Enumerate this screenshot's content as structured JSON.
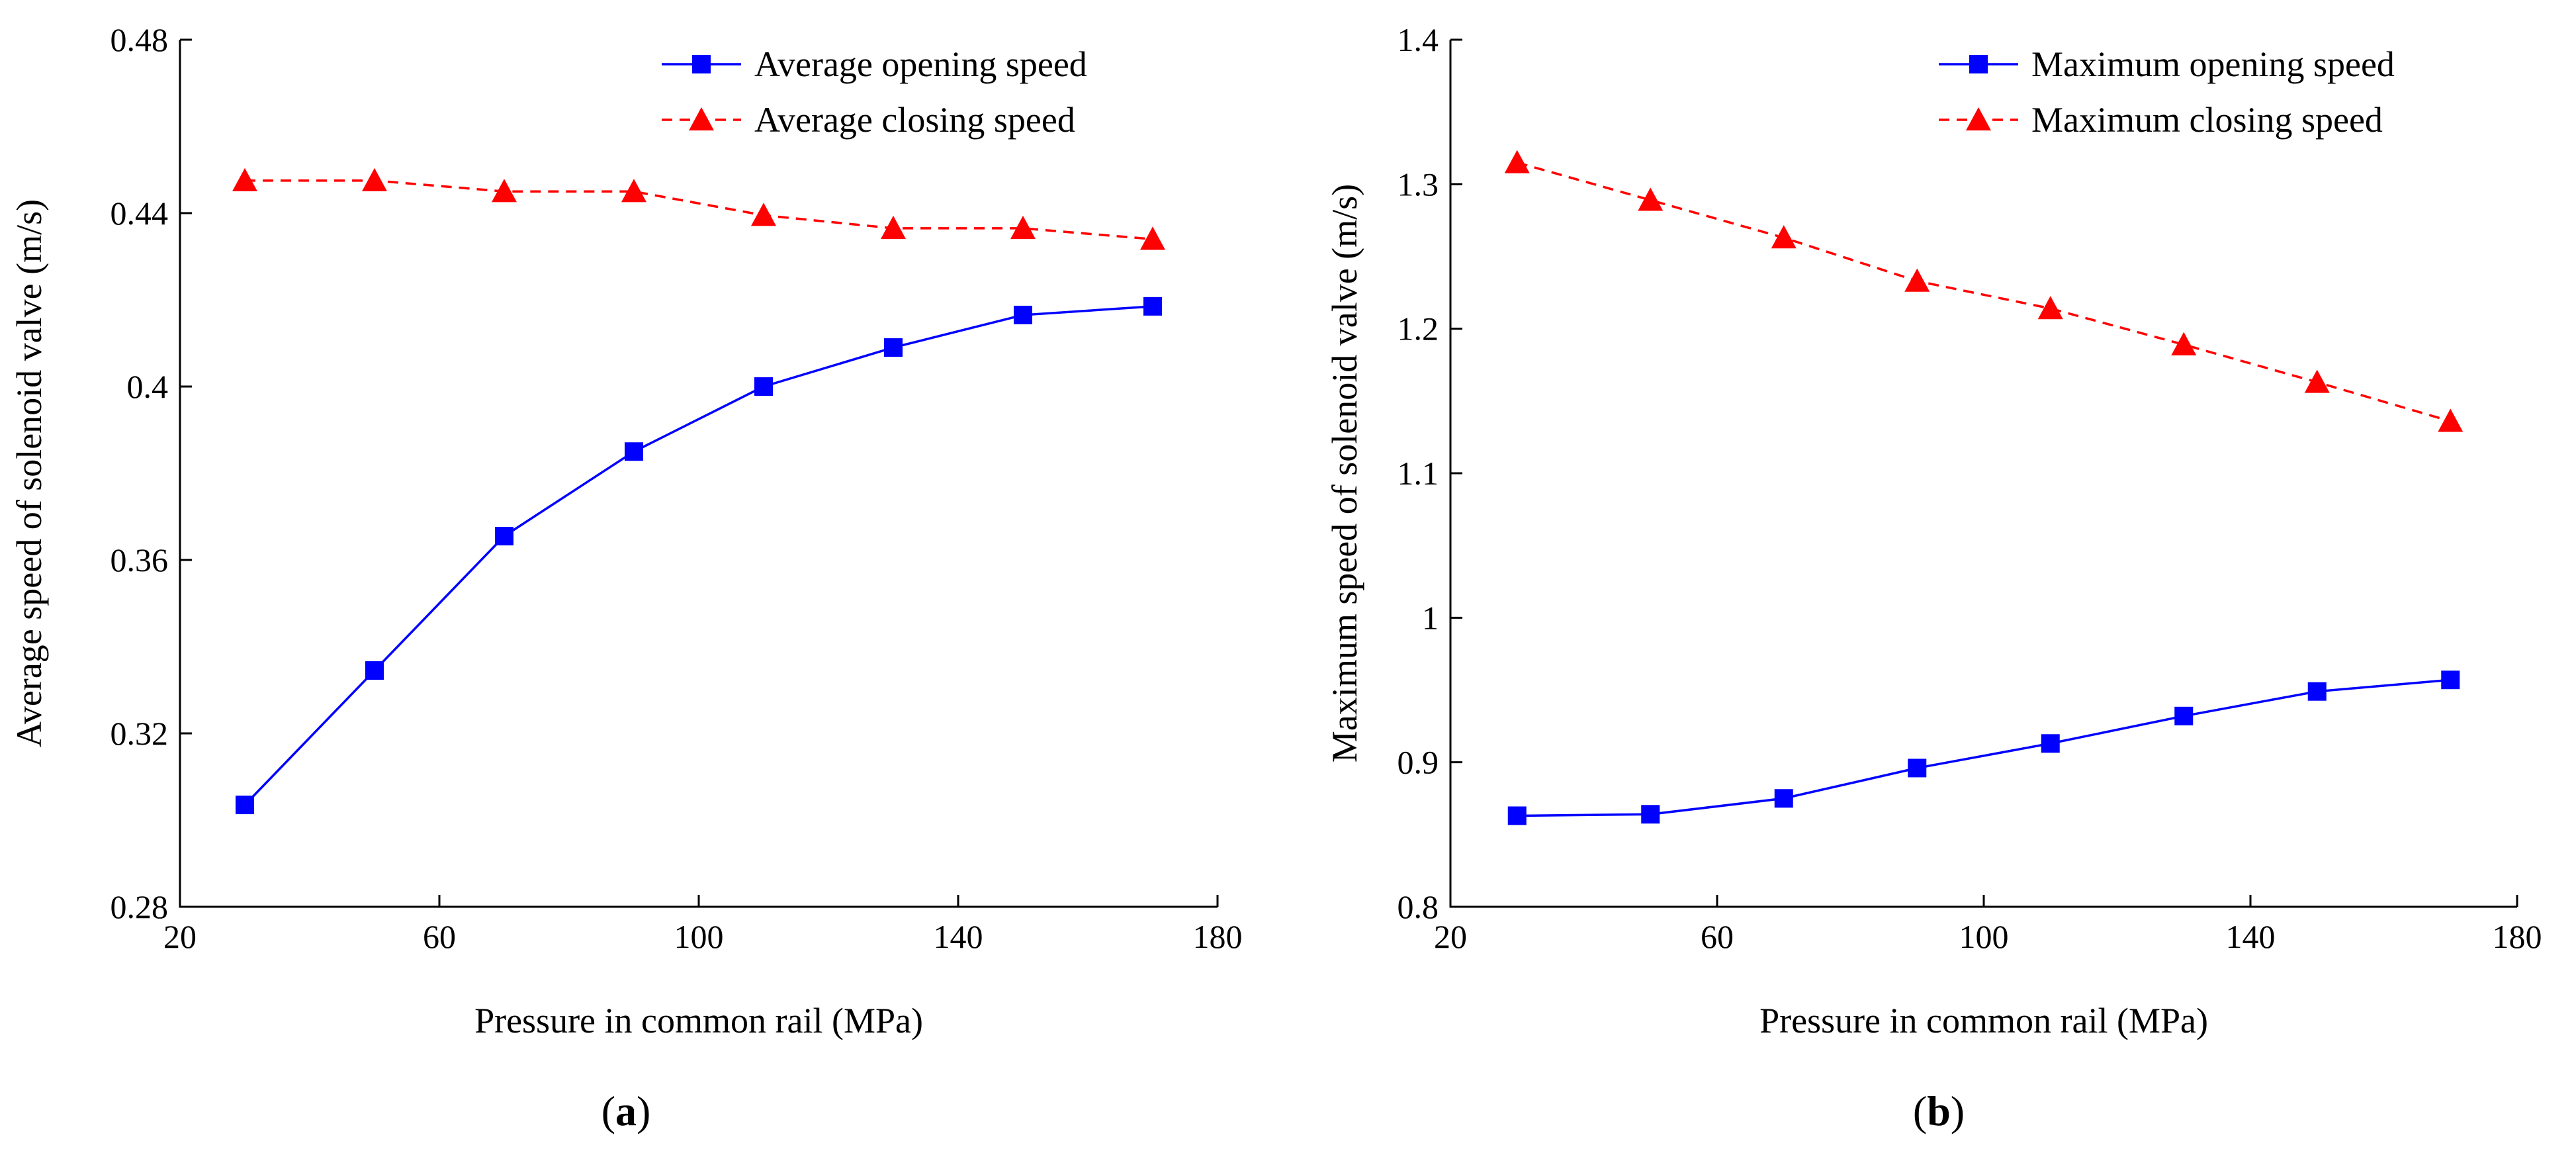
{
  "chart_data": [
    {
      "type": "line",
      "panel_label": "a",
      "xlabel": "Pressure in common rail (MPa)",
      "ylabel": "Average speed of solenoid valve (m/s)",
      "xlim": [
        20,
        180
      ],
      "ylim": [
        0.28,
        0.48
      ],
      "xticks": [
        20,
        60,
        100,
        140,
        180
      ],
      "xtick_labels": [
        "20",
        "60",
        "100",
        "140",
        "180"
      ],
      "yticks": [
        0.28,
        0.32,
        0.36,
        0.4,
        0.44,
        0.48
      ],
      "ytick_labels": [
        "0.28",
        "0.32",
        "0.36",
        "0.4",
        "0.44",
        "0.48"
      ],
      "grid": false,
      "legend_position": "top-right",
      "x": [
        30,
        50,
        70,
        90,
        110,
        130,
        150,
        170
      ],
      "series": [
        {
          "name": "Average opening speed",
          "color": "#0000ff",
          "marker": "square",
          "line_style": "solid",
          "values": [
            0.3035,
            0.3345,
            0.3655,
            0.385,
            0.4,
            0.409,
            0.4165,
            0.4185
          ]
        },
        {
          "name": "Average closing speed",
          "color": "#ff0000",
          "marker": "triangle",
          "line_style": "dashed",
          "values": [
            0.4475,
            0.4475,
            0.445,
            0.445,
            0.4395,
            0.4365,
            0.4365,
            0.434
          ]
        }
      ]
    },
    {
      "type": "line",
      "panel_label": "b",
      "xlabel": "Pressure in common rail (MPa)",
      "ylabel": "Maximum speed of solenoid valve (m/s)",
      "xlim": [
        20,
        180
      ],
      "ylim": [
        0.8,
        1.4
      ],
      "xticks": [
        20,
        60,
        100,
        140,
        180
      ],
      "xtick_labels": [
        "20",
        "60",
        "100",
        "140",
        "180"
      ],
      "yticks": [
        0.8,
        0.9,
        1.0,
        1.1,
        1.2,
        1.3,
        1.4
      ],
      "ytick_labels": [
        "0.8",
        "0.9",
        "1",
        "1.1",
        "1.2",
        "1.3",
        "1.4"
      ],
      "grid": false,
      "legend_position": "top-right",
      "x": [
        30,
        50,
        70,
        90,
        110,
        130,
        150,
        170
      ],
      "series": [
        {
          "name": "Maximum opening speed",
          "color": "#0000ff",
          "marker": "square",
          "line_style": "solid",
          "values": [
            0.863,
            0.864,
            0.875,
            0.896,
            0.913,
            0.932,
            0.949,
            0.957
          ]
        },
        {
          "name": "Maximum closing speed",
          "color": "#ff0000",
          "marker": "triangle",
          "line_style": "dashed",
          "values": [
            1.315,
            1.289,
            1.263,
            1.233,
            1.214,
            1.189,
            1.163,
            1.136
          ]
        }
      ]
    }
  ]
}
